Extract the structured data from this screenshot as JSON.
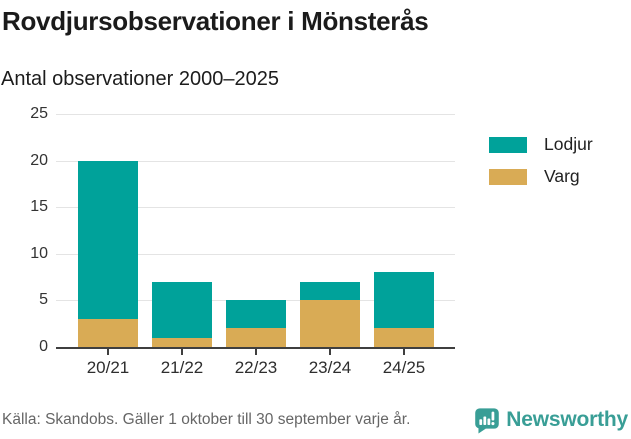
{
  "header": {
    "title": "Rovdjursobservationer i Mönsterås",
    "subtitle": "Antal observationer 2000–2025"
  },
  "chart_data": {
    "type": "bar",
    "stacked": true,
    "title": "Rovdjursobservationer i Mönsterås",
    "subtitle": "Antal observationer 2000–2025",
    "categories": [
      "20/21",
      "21/22",
      "22/23",
      "23/24",
      "24/25"
    ],
    "series": [
      {
        "name": "Lodjur",
        "color": "#00a29a",
        "values": [
          17,
          6,
          3,
          2,
          6
        ]
      },
      {
        "name": "Varg",
        "color": "#d9ab55",
        "values": [
          3,
          1,
          2,
          5,
          2
        ]
      }
    ],
    "stacked_totals": [
      20,
      7,
      5,
      7,
      8
    ],
    "xlabel": "",
    "ylabel": "",
    "ylim": [
      0,
      25
    ],
    "yticks": [
      0,
      5,
      10,
      15,
      20,
      25
    ],
    "grid": true,
    "legend_position": "right"
  },
  "colors": {
    "lodjur": "#00a29a",
    "varg": "#d9ab55",
    "axis": "#3f3f3f",
    "gridline": "#e4e4e4",
    "brand_teal": "#399e96"
  },
  "footer": {
    "source": "Källa: Skandobs. Gäller 1 oktober till 30 september varje år.",
    "brand": "Newsworthy"
  }
}
